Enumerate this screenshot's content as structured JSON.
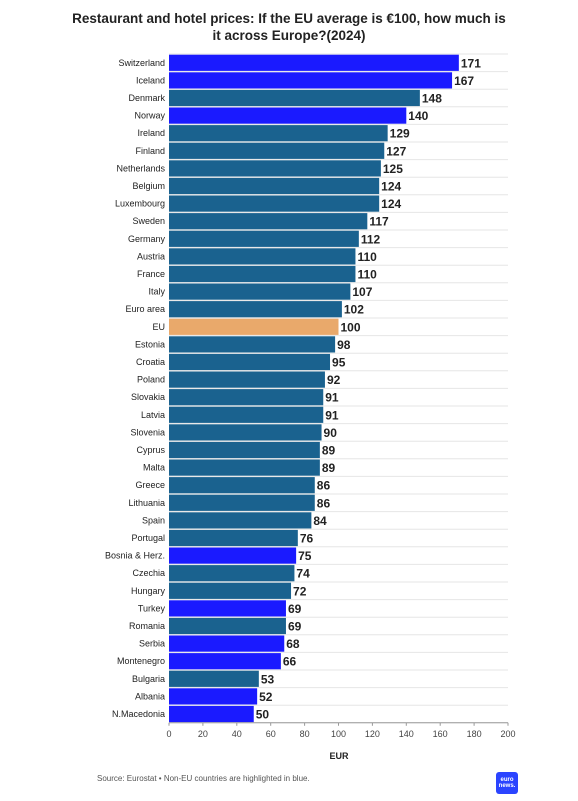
{
  "chart_data": {
    "type": "bar",
    "orientation": "horizontal",
    "title": "Restaurant and hotel prices: If the EU average is €100, how much is it across Europe?(2024)",
    "xlabel": "EUR",
    "ylabel": "",
    "xlim": [
      0,
      200
    ],
    "xticks": [
      0,
      20,
      40,
      60,
      80,
      100,
      120,
      140,
      160,
      180,
      200
    ],
    "grid": true,
    "legend": "none",
    "colors": {
      "eu_member": "#1a628f",
      "non_eu": "#1a1aff",
      "eu_average": "#e9a96b"
    },
    "categories": [
      "Switzerland",
      "Iceland",
      "Denmark",
      "Norway",
      "Ireland",
      "Finland",
      "Netherlands",
      "Belgium",
      "Luxembourg",
      "Sweden",
      "Germany",
      "Austria",
      "France",
      "Italy",
      "Euro area",
      "EU",
      "Estonia",
      "Croatia",
      "Poland",
      "Slovakia",
      "Latvia",
      "Slovenia",
      "Cyprus",
      "Malta",
      "Greece",
      "Lithuania",
      "Spain",
      "Portugal",
      "Bosnia & Herz.",
      "Czechia",
      "Hungary",
      "Turkey",
      "Romania",
      "Serbia",
      "Montenegro",
      "Bulgaria",
      "Albania",
      "N.Macedonia"
    ],
    "values": [
      171,
      167,
      148,
      140,
      129,
      127,
      125,
      124,
      124,
      117,
      112,
      110,
      110,
      107,
      102,
      100,
      98,
      95,
      92,
      91,
      91,
      90,
      89,
      89,
      86,
      86,
      84,
      76,
      75,
      74,
      72,
      69,
      69,
      68,
      66,
      53,
      52,
      50
    ],
    "groups": [
      "non_eu",
      "non_eu",
      "eu_member",
      "non_eu",
      "eu_member",
      "eu_member",
      "eu_member",
      "eu_member",
      "eu_member",
      "eu_member",
      "eu_member",
      "eu_member",
      "eu_member",
      "eu_member",
      "eu_member",
      "eu_average",
      "eu_member",
      "eu_member",
      "eu_member",
      "eu_member",
      "eu_member",
      "eu_member",
      "eu_member",
      "eu_member",
      "eu_member",
      "eu_member",
      "eu_member",
      "eu_member",
      "non_eu",
      "eu_member",
      "eu_member",
      "non_eu",
      "eu_member",
      "non_eu",
      "non_eu",
      "eu_member",
      "non_eu",
      "non_eu"
    ]
  },
  "footer": {
    "source": "Source: Eurostat • Non-EU countries are highlighted in blue.",
    "logo_line1": "euro",
    "logo_line2": "news."
  }
}
